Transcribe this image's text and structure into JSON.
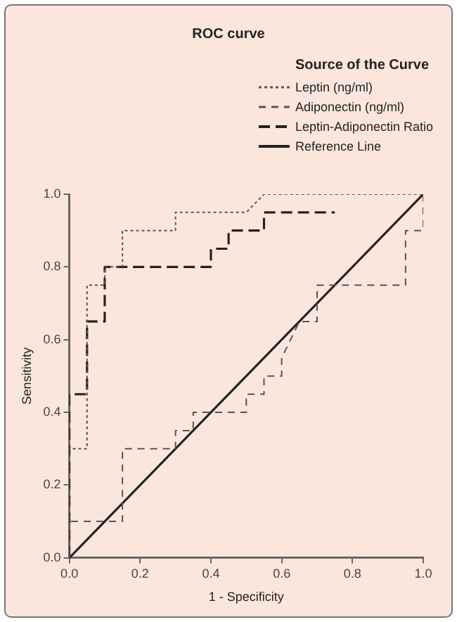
{
  "chart_data": {
    "type": "line",
    "title": "ROC curve",
    "legend_title": "Source of the Curve",
    "xlabel": "1 - Specificity",
    "ylabel": "Sensitivity",
    "xlim": [
      0,
      1
    ],
    "ylim": [
      0,
      1
    ],
    "xticks": [
      {
        "value": 0,
        "label": "0.0"
      },
      0.2,
      0.4,
      0.6,
      0.8,
      {
        "value": 1,
        "label": "1.0"
      }
    ],
    "yticks": [
      {
        "value": 0,
        "label": "0.0"
      },
      0.2,
      0.4,
      0.6,
      0.8,
      {
        "value": 1,
        "label": "1.0"
      }
    ],
    "grid": false,
    "legend": "top right",
    "marker": "none",
    "series": [
      {
        "name": "Leptin (ng/ml)",
        "color": "#555555",
        "line_style": "dotted",
        "x": [
          0,
          0,
          0.05,
          0.05,
          0.1,
          0.1,
          0.15,
          0.15,
          0.3,
          0.3,
          0.5,
          0.55,
          1
        ],
        "values": [
          0,
          0.3,
          0.3,
          0.75,
          0.75,
          0.8,
          0.8,
          0.9,
          0.9,
          0.95,
          0.95,
          1,
          1
        ]
      },
      {
        "name": "Adiponectin (ng/ml)",
        "color": "#555555",
        "line_style": "dashed",
        "x": [
          0,
          0,
          0.15,
          0.15,
          0.3,
          0.3,
          0.35,
          0.35,
          0.5,
          0.5,
          0.55,
          0.55,
          0.6,
          0.6,
          0.65,
          0.7,
          0.7,
          0.95,
          0.95,
          1,
          1
        ],
        "values": [
          0,
          0.1,
          0.1,
          0.3,
          0.3,
          0.35,
          0.35,
          0.4,
          0.4,
          0.45,
          0.45,
          0.5,
          0.5,
          0.55,
          0.65,
          0.65,
          0.75,
          0.75,
          0.9,
          0.9,
          1
        ]
      },
      {
        "name": "Leptin-Adiponectin Ratio",
        "color": "#222222",
        "line_style": "dashed",
        "x": [
          0,
          0,
          0.05,
          0.05,
          0.1,
          0.1,
          0.4,
          0.4,
          0.45,
          0.45,
          0.55,
          0.55,
          0.75
        ],
        "values": [
          0,
          0.45,
          0.45,
          0.65,
          0.65,
          0.8,
          0.8,
          0.85,
          0.85,
          0.9,
          0.9,
          0.95,
          0.95
        ]
      },
      {
        "name": "Reference Line",
        "color": "#222222",
        "line_style": "solid",
        "x": [
          0,
          1
        ],
        "values": [
          0,
          1
        ]
      }
    ]
  }
}
